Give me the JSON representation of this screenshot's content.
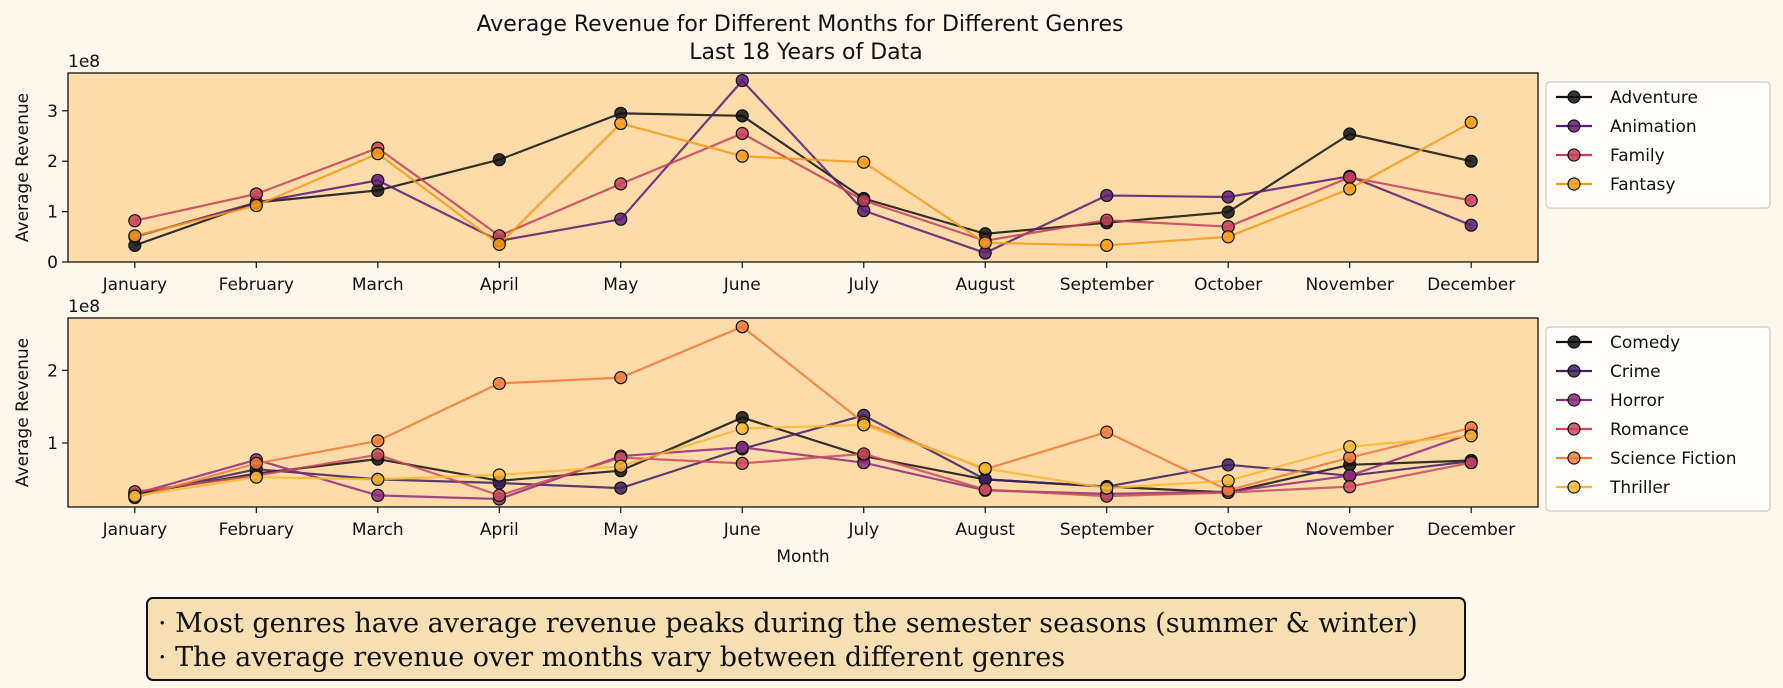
{
  "title_lines": [
    "Average Revenue for Different Months for Different Genres",
    "Last 18 Years of Data"
  ],
  "chart_data": [
    {
      "type": "line",
      "categories": [
        "January",
        "February",
        "March",
        "April",
        "May",
        "June",
        "July",
        "August",
        "September",
        "October",
        "November",
        "December"
      ],
      "ylabel": "Average Revenue",
      "xlabel": "",
      "y_multiplier_label": "1e8",
      "ylim": [
        0,
        3.75
      ],
      "yticks": [
        0,
        1,
        2,
        3
      ],
      "ytick_labels": [
        "0",
        "1",
        "2",
        "3"
      ],
      "grid": false,
      "legend": "outside-right",
      "series": [
        {
          "name": "Adventure",
          "color": "#111111",
          "values": [
            0.33,
            1.18,
            1.42,
            2.03,
            2.95,
            2.9,
            1.26,
            0.56,
            0.78,
            0.99,
            2.54,
            2.0
          ]
        },
        {
          "name": "Animation",
          "color": "#5c1a74",
          "values": [
            0.5,
            1.18,
            1.62,
            0.42,
            0.85,
            3.6,
            1.02,
            0.18,
            1.32,
            1.29,
            1.7,
            0.73
          ]
        },
        {
          "name": "Family",
          "color": "#c43f5a",
          "values": [
            0.82,
            1.35,
            2.26,
            0.52,
            1.55,
            2.55,
            1.22,
            0.42,
            0.83,
            0.7,
            1.68,
            1.22
          ]
        },
        {
          "name": "Fantasy",
          "color": "#f59a16",
          "values": [
            0.52,
            1.12,
            2.15,
            0.35,
            2.75,
            2.1,
            1.98,
            0.38,
            0.33,
            0.5,
            1.45,
            2.77
          ]
        }
      ]
    },
    {
      "type": "line",
      "categories": [
        "January",
        "February",
        "March",
        "April",
        "May",
        "June",
        "July",
        "August",
        "September",
        "October",
        "November",
        "December"
      ],
      "ylabel": "Average Revenue",
      "xlabel": "Month",
      "y_multiplier_label": "1e8",
      "ylim": [
        0.12,
        2.72
      ],
      "yticks": [
        1,
        2
      ],
      "ytick_labels": [
        "1",
        "2"
      ],
      "grid": false,
      "legend": "outside-right",
      "series": [
        {
          "name": "Comedy",
          "color": "#111111",
          "values": [
            0.3,
            0.58,
            0.78,
            0.48,
            0.62,
            1.35,
            0.82,
            0.5,
            0.4,
            0.32,
            0.7,
            0.76
          ]
        },
        {
          "name": "Crime",
          "color": "#3d1f63",
          "values": [
            0.28,
            0.64,
            0.5,
            0.45,
            0.38,
            0.92,
            1.38,
            0.5,
            0.4,
            0.7,
            0.55,
            0.75
          ]
        },
        {
          "name": "Horror",
          "color": "#8c2b7b",
          "values": [
            0.3,
            0.77,
            0.28,
            0.23,
            0.82,
            0.94,
            0.73,
            0.35,
            0.3,
            0.33,
            0.55,
            1.13
          ]
        },
        {
          "name": "Romance",
          "color": "#c94a5c",
          "values": [
            0.33,
            0.55,
            0.84,
            0.28,
            0.8,
            0.72,
            0.85,
            0.36,
            0.27,
            0.32,
            0.4,
            0.73
          ]
        },
        {
          "name": "Science Fiction",
          "color": "#f07a3a",
          "values": [
            0.25,
            0.72,
            1.03,
            1.82,
            1.9,
            2.6,
            1.28,
            0.64,
            1.15,
            0.35,
            0.8,
            1.21
          ]
        },
        {
          "name": "Thriller",
          "color": "#f7b833",
          "values": [
            0.27,
            0.53,
            0.5,
            0.56,
            0.68,
            1.2,
            1.25,
            0.65,
            0.38,
            0.48,
            0.95,
            1.1
          ]
        }
      ]
    }
  ],
  "notes": [
    "· Most genres have average revenue peaks during the semester seasons (summer & winter)",
    "· The average revenue over months vary between different genres"
  ]
}
